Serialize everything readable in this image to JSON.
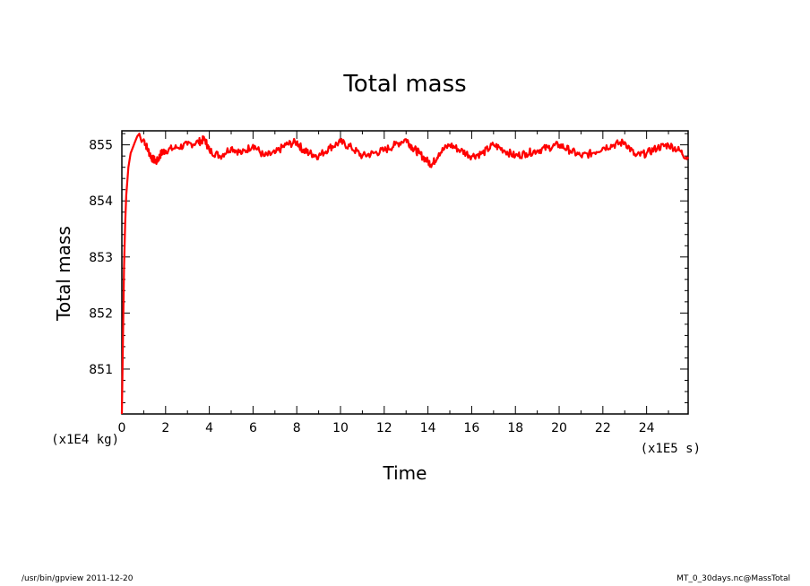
{
  "chart_data": {
    "type": "line",
    "title": "Total mass",
    "xlabel": "Time",
    "ylabel": "Total mass",
    "x_unit": "(x1E5 s)",
    "y_unit": "(x1E4 kg)",
    "xlim": [
      0,
      25.9
    ],
    "ylim": [
      850.2,
      855.25
    ],
    "x_ticks": [
      0,
      2,
      4,
      6,
      8,
      10,
      12,
      14,
      16,
      18,
      20,
      22,
      24
    ],
    "y_ticks": [
      851,
      852,
      853,
      854,
      855
    ],
    "grid": false,
    "legend": "none",
    "series": [
      {
        "color": "#ff0000",
        "x": [
          0,
          0.05,
          0.1,
          0.15,
          0.2,
          0.3,
          0.4,
          0.5,
          0.6,
          0.7,
          0.8,
          0.9,
          1.0,
          1.2,
          1.4,
          1.6,
          1.8,
          2.0,
          2.5,
          3.0,
          3.5,
          3.8,
          4.0,
          4.5,
          5.0,
          5.5,
          6.0,
          6.5,
          7.0,
          7.5,
          8.0,
          8.3,
          8.6,
          9.0,
          9.5,
          10.0,
          10.5,
          11.0,
          11.5,
          12.0,
          12.5,
          13.0,
          13.3,
          13.6,
          14.0,
          14.2,
          14.5,
          15.0,
          15.5,
          16.0,
          16.5,
          17.0,
          17.5,
          18.0,
          18.5,
          19.0,
          19.5,
          20.0,
          20.5,
          21.0,
          21.5,
          22.0,
          22.5,
          23.0,
          23.5,
          24.0,
          24.5,
          25.0,
          25.5,
          25.9
        ],
        "y": [
          850.2,
          851.5,
          852.8,
          853.6,
          854.1,
          854.6,
          854.85,
          854.95,
          855.05,
          855.15,
          855.2,
          855.05,
          855.1,
          854.9,
          854.75,
          854.7,
          854.85,
          854.9,
          854.95,
          855.0,
          855.05,
          855.1,
          854.9,
          854.8,
          854.95,
          854.85,
          855.0,
          854.8,
          854.85,
          855.0,
          855.05,
          854.9,
          854.85,
          854.8,
          854.95,
          855.05,
          854.95,
          854.8,
          854.85,
          854.9,
          855.0,
          855.1,
          854.95,
          854.85,
          854.7,
          854.65,
          854.85,
          855.0,
          854.9,
          854.8,
          854.85,
          855.0,
          854.9,
          854.8,
          854.85,
          854.9,
          854.95,
          855.0,
          854.9,
          854.8,
          854.85,
          854.95,
          855.0,
          855.05,
          854.8,
          854.85,
          854.95,
          855.0,
          854.9,
          854.75
        ]
      }
    ]
  },
  "footer": {
    "left": "/usr/bin/gpview   2011-12-20",
    "right": "MT_0_30days.nc@MassTotal"
  }
}
